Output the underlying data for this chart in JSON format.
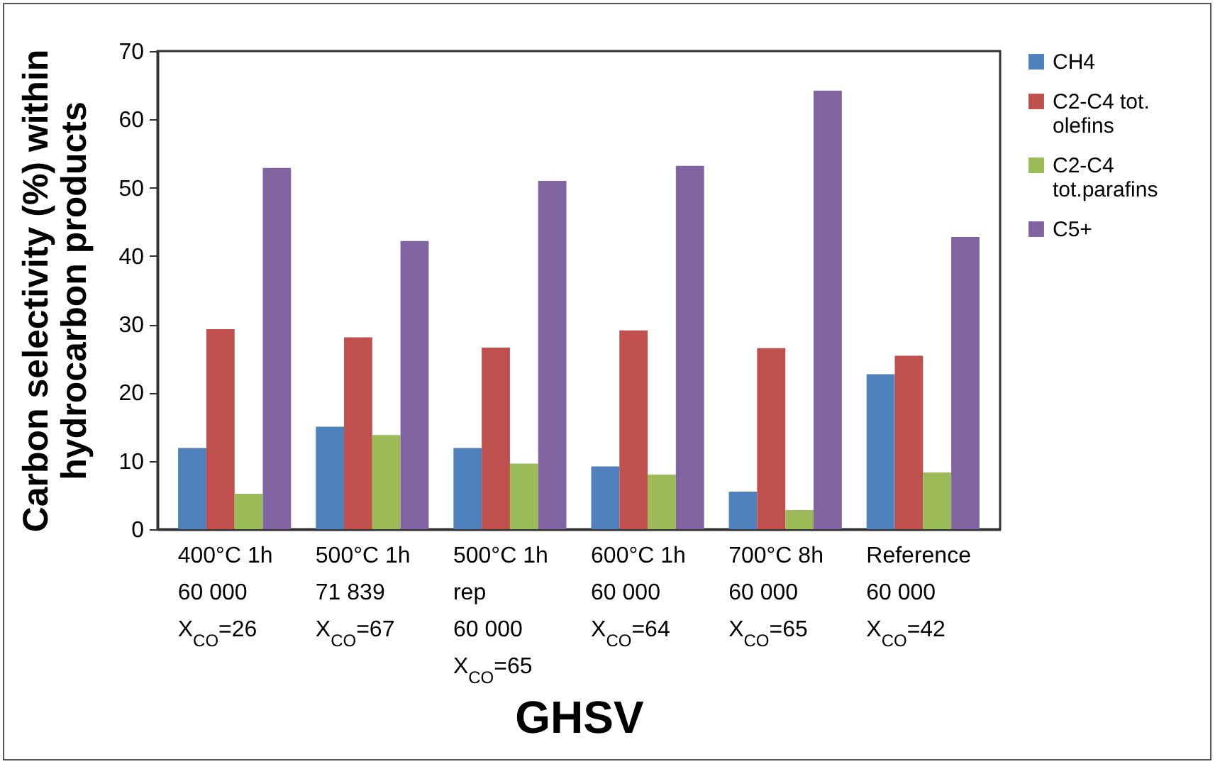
{
  "chart_data": {
    "type": "bar",
    "xlabel": "GHSV",
    "ylabel": "Carbon selectivity (%) within hydrocarbon products",
    "categories": [
      "400°C 1h\n60 000\nX$_{CO}$=26",
      "500°C 1h\n71 839\nX$_{CO}$=67",
      "500°C 1h\nrep\n60 000\nX$_{CO}$=65",
      "600°C 1h\n60 000\nX$_{CO}$=64",
      "700°C 8h\n60 000\nX$_{CO}$=65",
      "Reference\n60 000\nX$_{CO}$=42"
    ],
    "series": [
      {
        "name": "CH4",
        "color": "#4f81bd",
        "values": [
          11.9,
          15.0,
          11.9,
          9.2,
          5.5,
          22.7
        ]
      },
      {
        "name": "C2-C4 tot. olefins",
        "color": "#c0504d",
        "values": [
          29.3,
          28.1,
          26.6,
          29.1,
          26.5,
          25.4
        ]
      },
      {
        "name": "C2-C4 tot.parafins",
        "color": "#9bbb59",
        "values": [
          5.2,
          13.8,
          9.6,
          8.0,
          2.8,
          8.3
        ]
      },
      {
        "name": "C5+",
        "color": "#8064a2",
        "values": [
          52.9,
          42.2,
          51.0,
          53.2,
          64.2,
          42.8
        ]
      }
    ],
    "ylim": [
      0,
      70
    ],
    "yticks": [
      0,
      10,
      20,
      30,
      40,
      50,
      60,
      70
    ],
    "grid": false,
    "legend": "right"
  }
}
